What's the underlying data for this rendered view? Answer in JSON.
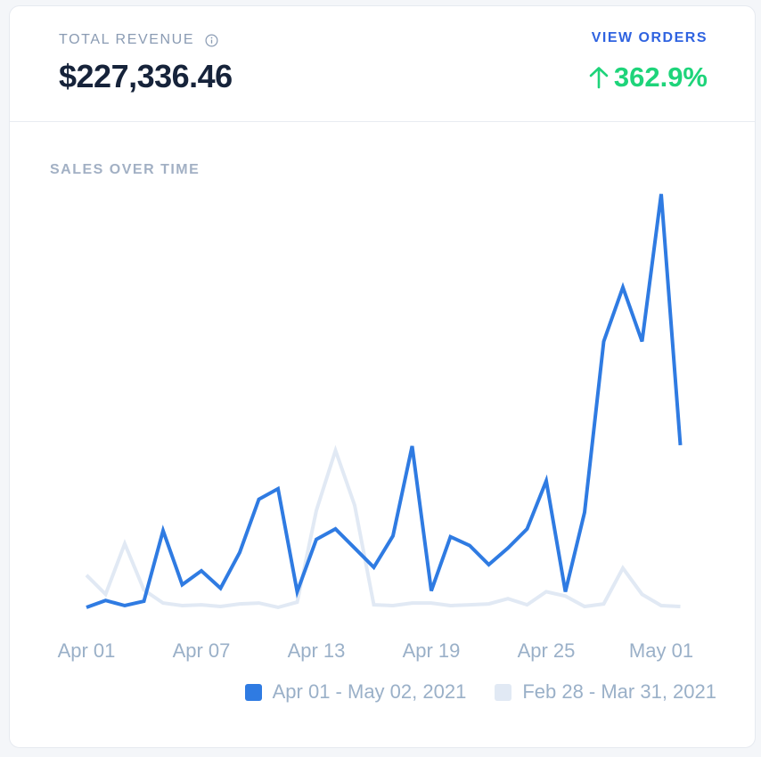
{
  "header": {
    "metric_label": "TOTAL REVENUE",
    "metric_value": "$227,336.46",
    "view_orders": "VIEW ORDERS",
    "change": "362.9%"
  },
  "colors": {
    "current": "#2f7be2",
    "previous": "#e1e9f4",
    "positive": "#1ed47a",
    "link": "#2f63e0"
  },
  "chart_data": {
    "type": "line",
    "title": "SALES OVER TIME",
    "x_tick_labels": [
      "Apr 01",
      "Apr 07",
      "Apr 13",
      "Apr 19",
      "Apr 25",
      "May 01"
    ],
    "grid": false,
    "legend_position": "bottom-right",
    "series": [
      {
        "name": "Apr 01 - May 02, 2021",
        "values": [
          0,
          8,
          2,
          7,
          88,
          26,
          42,
          22,
          63,
          124,
          136,
          18,
          78,
          90,
          68,
          46,
          82,
          185,
          19,
          81,
          71,
          49,
          68,
          90,
          145,
          18,
          109,
          305,
          367,
          305,
          474,
          186
        ]
      },
      {
        "name": "Feb 28 - Mar 31, 2021",
        "values": [
          37,
          15,
          73,
          20,
          5,
          2,
          3,
          1,
          4,
          5,
          0,
          6,
          111,
          180,
          117,
          3,
          2,
          5,
          5,
          2,
          3,
          4,
          10,
          3,
          18,
          13,
          1,
          4,
          45,
          15,
          2,
          1
        ]
      }
    ],
    "ylim": [
      0,
      480
    ]
  }
}
